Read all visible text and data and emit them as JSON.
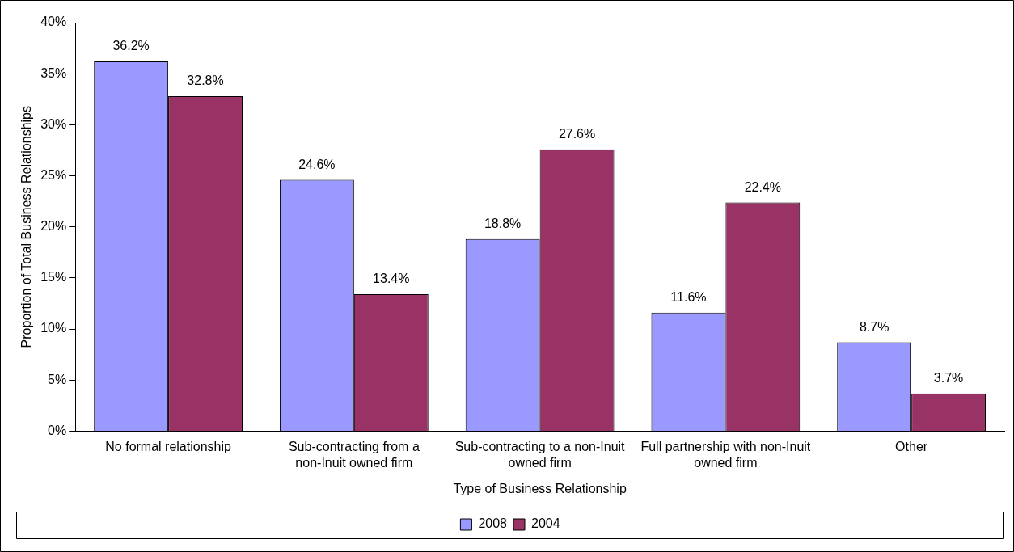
{
  "chart_data": {
    "type": "bar",
    "xlabel": "Type of Business Relationship",
    "ylabel": "Proportion of Total Business Relationships",
    "categories": [
      "No formal relationship",
      "Sub-contracting from a non-Inuit owned firm",
      "Sub-contracting to a non-Inuit owned firm",
      "Full partnership with non-Inuit owned firm",
      "Other"
    ],
    "series": [
      {
        "name": "2008",
        "color": "#9999ff",
        "values": [
          36.2,
          24.6,
          18.8,
          11.6,
          8.7
        ],
        "value_labels": [
          "36.2%",
          "24.6%",
          "18.8%",
          "11.6%",
          "8.7%"
        ]
      },
      {
        "name": "2004",
        "color": "#993366",
        "values": [
          32.8,
          13.4,
          27.6,
          22.4,
          3.7
        ],
        "value_labels": [
          "32.8%",
          "13.4%",
          "27.6%",
          "22.4%",
          "3.7%"
        ]
      }
    ],
    "ylim": [
      0,
      40
    ],
    "yticks": [
      {
        "value": 0,
        "label": "0%"
      },
      {
        "value": 5,
        "label": "5%"
      },
      {
        "value": 10,
        "label": "10%"
      },
      {
        "value": 15,
        "label": "15%"
      },
      {
        "value": 20,
        "label": "20%"
      },
      {
        "value": 25,
        "label": "25%"
      },
      {
        "value": 30,
        "label": "30%"
      },
      {
        "value": 35,
        "label": "35%"
      },
      {
        "value": 40,
        "label": "40%"
      }
    ],
    "grid": false,
    "legend": "bottom"
  }
}
